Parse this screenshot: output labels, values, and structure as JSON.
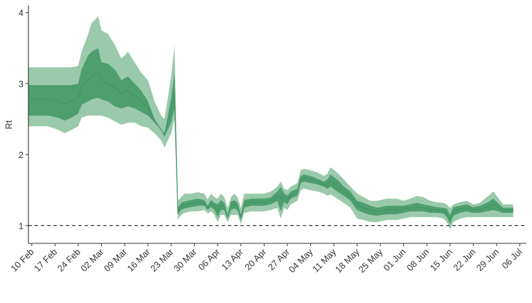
{
  "chart_data": {
    "type": "area",
    "title": "",
    "xlabel": "",
    "ylabel": "Rt",
    "ylim": [
      0.75,
      4.1
    ],
    "yticks": [
      1,
      2,
      3,
      4
    ],
    "xlim": [
      "2020-02-09",
      "2020-07-08"
    ],
    "xticks": [
      "2020-02-10",
      "2020-02-17",
      "2020-02-24",
      "2020-03-02",
      "2020-03-09",
      "2020-03-16",
      "2020-03-23",
      "2020-03-30",
      "2020-04-06",
      "2020-04-13",
      "2020-04-20",
      "2020-04-27",
      "2020-05-04",
      "2020-05-11",
      "2020-05-18",
      "2020-05-25",
      "2020-06-01",
      "2020-06-08",
      "2020-06-15",
      "2020-06-22",
      "2020-06-29",
      "2020-07-06"
    ],
    "xtick_labels": [
      "10 Feb",
      "17 Feb",
      "24 Feb",
      "02 Mar",
      "09 Mar",
      "16 Mar",
      "23 Mar",
      "30 Mar",
      "06 Apr",
      "13 Apr",
      "20 Apr",
      "27 Apr",
      "04 May",
      "11 May",
      "18 May",
      "25 May",
      "01 Jun",
      "08 Jun",
      "15 Jun",
      "22 Jun",
      "29 Jun",
      "06 Jul"
    ],
    "reference_line": {
      "y": 1,
      "style": "dashed"
    },
    "grid": false,
    "legend": "none",
    "colors": {
      "outer_band": "#9ac9ab",
      "inner_band": "#4f9e6e",
      "median_line": "#3f9662",
      "reference": "#333333"
    },
    "series": [
      {
        "x": [
          "2020-02-09",
          "2020-02-12",
          "2020-02-15",
          "2020-02-18",
          "2020-02-20",
          "2020-02-22",
          "2020-02-24",
          "2020-02-25",
          "2020-02-27",
          "2020-02-28",
          "2020-03-01",
          "2020-03-02",
          "2020-03-04",
          "2020-03-06",
          "2020-03-08",
          "2020-03-10",
          "2020-03-12",
          "2020-03-14",
          "2020-03-16",
          "2020-03-18",
          "2020-03-20",
          "2020-03-21",
          "2020-03-23",
          "2020-03-24",
          "2020-03-25",
          "2020-03-26",
          "2020-03-27",
          "2020-03-29",
          "2020-03-31",
          "2020-04-02",
          "2020-04-03",
          "2020-04-04",
          "2020-04-05",
          "2020-04-06",
          "2020-04-07",
          "2020-04-08",
          "2020-04-09",
          "2020-04-10",
          "2020-04-11",
          "2020-04-12",
          "2020-04-13",
          "2020-04-14",
          "2020-04-16",
          "2020-04-18",
          "2020-04-20",
          "2020-04-22",
          "2020-04-24",
          "2020-04-25",
          "2020-04-26",
          "2020-04-27",
          "2020-04-28",
          "2020-04-30",
          "2020-05-01",
          "2020-05-02",
          "2020-05-04",
          "2020-05-06",
          "2020-05-08",
          "2020-05-09",
          "2020-05-10",
          "2020-05-12",
          "2020-05-14",
          "2020-05-16",
          "2020-05-18",
          "2020-05-20",
          "2020-05-22",
          "2020-05-24",
          "2020-05-27",
          "2020-05-30",
          "2020-06-01",
          "2020-06-03",
          "2020-06-05",
          "2020-06-07",
          "2020-06-09",
          "2020-06-11",
          "2020-06-13",
          "2020-06-14",
          "2020-06-15",
          "2020-06-16",
          "2020-06-18",
          "2020-06-20",
          "2020-06-22",
          "2020-06-24",
          "2020-06-26",
          "2020-06-28",
          "2020-07-01",
          "2020-07-04"
        ],
        "outer_upper": [
          3.23,
          3.23,
          3.23,
          3.23,
          3.23,
          3.23,
          3.25,
          3.45,
          3.7,
          3.85,
          3.95,
          3.75,
          3.7,
          3.55,
          3.35,
          3.45,
          3.3,
          3.15,
          3.05,
          2.75,
          2.55,
          2.5,
          3.1,
          3.55,
          1.35,
          1.4,
          1.45,
          1.45,
          1.47,
          1.45,
          1.37,
          1.45,
          1.4,
          1.38,
          1.45,
          1.4,
          1.25,
          1.4,
          1.45,
          1.4,
          1.25,
          1.45,
          1.45,
          1.45,
          1.45,
          1.48,
          1.55,
          1.62,
          1.52,
          1.5,
          1.55,
          1.6,
          1.78,
          1.8,
          1.78,
          1.75,
          1.7,
          1.73,
          1.82,
          1.75,
          1.65,
          1.55,
          1.45,
          1.4,
          1.35,
          1.35,
          1.38,
          1.38,
          1.35,
          1.38,
          1.42,
          1.4,
          1.35,
          1.33,
          1.32,
          1.3,
          1.25,
          1.3,
          1.33,
          1.35,
          1.3,
          1.32,
          1.4,
          1.48,
          1.3,
          1.3
        ],
        "outer_lower": [
          2.4,
          2.4,
          2.4,
          2.35,
          2.3,
          2.35,
          2.4,
          2.52,
          2.55,
          2.55,
          2.55,
          2.55,
          2.52,
          2.47,
          2.42,
          2.45,
          2.45,
          2.4,
          2.38,
          2.3,
          2.2,
          2.1,
          2.3,
          2.5,
          1.08,
          1.15,
          1.18,
          1.2,
          1.2,
          1.22,
          1.17,
          1.2,
          1.15,
          1.05,
          1.15,
          1.15,
          1.05,
          1.15,
          1.15,
          1.15,
          1.02,
          1.18,
          1.2,
          1.2,
          1.2,
          1.22,
          1.25,
          1.1,
          1.25,
          1.22,
          1.3,
          1.35,
          1.5,
          1.52,
          1.5,
          1.48,
          1.45,
          1.42,
          1.44,
          1.38,
          1.32,
          1.25,
          1.1,
          1.08,
          1.05,
          1.05,
          1.08,
          1.08,
          1.1,
          1.12,
          1.12,
          1.12,
          1.12,
          1.12,
          1.1,
          1.05,
          0.95,
          1.05,
          1.1,
          1.12,
          1.12,
          1.12,
          1.12,
          1.12,
          1.12,
          1.12
        ],
        "inner_upper": [
          2.98,
          2.98,
          2.98,
          2.98,
          2.98,
          2.98,
          3.0,
          3.2,
          3.4,
          3.45,
          3.5,
          3.3,
          3.28,
          3.2,
          3.05,
          3.1,
          3.0,
          2.9,
          2.75,
          2.5,
          2.35,
          2.3,
          2.8,
          3.15,
          1.25,
          1.32,
          1.34,
          1.36,
          1.38,
          1.36,
          1.28,
          1.36,
          1.32,
          1.3,
          1.36,
          1.32,
          1.15,
          1.34,
          1.36,
          1.32,
          1.15,
          1.36,
          1.38,
          1.38,
          1.38,
          1.4,
          1.48,
          1.55,
          1.45,
          1.42,
          1.48,
          1.52,
          1.7,
          1.72,
          1.7,
          1.66,
          1.62,
          1.65,
          1.72,
          1.65,
          1.55,
          1.48,
          1.35,
          1.32,
          1.28,
          1.25,
          1.28,
          1.28,
          1.28,
          1.3,
          1.32,
          1.3,
          1.28,
          1.26,
          1.25,
          1.24,
          1.15,
          1.26,
          1.28,
          1.3,
          1.26,
          1.28,
          1.32,
          1.38,
          1.25,
          1.25
        ],
        "inner_lower": [
          2.55,
          2.55,
          2.55,
          2.52,
          2.48,
          2.52,
          2.58,
          2.7,
          2.75,
          2.78,
          2.8,
          2.78,
          2.75,
          2.68,
          2.65,
          2.68,
          2.65,
          2.6,
          2.55,
          2.45,
          2.35,
          2.25,
          2.45,
          2.65,
          1.15,
          1.22,
          1.24,
          1.26,
          1.28,
          1.28,
          1.22,
          1.26,
          1.22,
          1.12,
          1.22,
          1.22,
          1.1,
          1.22,
          1.24,
          1.22,
          1.08,
          1.25,
          1.28,
          1.28,
          1.28,
          1.3,
          1.35,
          1.2,
          1.33,
          1.3,
          1.38,
          1.42,
          1.6,
          1.62,
          1.6,
          1.58,
          1.55,
          1.52,
          1.55,
          1.48,
          1.42,
          1.35,
          1.22,
          1.18,
          1.15,
          1.14,
          1.16,
          1.16,
          1.18,
          1.2,
          1.2,
          1.2,
          1.18,
          1.18,
          1.17,
          1.12,
          1.02,
          1.14,
          1.18,
          1.2,
          1.18,
          1.18,
          1.2,
          1.22,
          1.18,
          1.18
        ],
        "median": [
          2.78,
          2.78,
          2.78,
          2.75,
          2.72,
          2.75,
          2.8,
          2.95,
          3.05,
          3.1,
          3.15,
          3.05,
          3.0,
          2.95,
          2.85,
          2.9,
          2.82,
          2.75,
          2.65,
          2.48,
          2.35,
          2.28,
          2.62,
          2.9,
          1.2,
          1.27,
          1.29,
          1.31,
          1.33,
          1.32,
          1.25,
          1.31,
          1.27,
          1.2,
          1.29,
          1.27,
          1.12,
          1.28,
          1.3,
          1.27,
          1.11,
          1.3,
          1.33,
          1.33,
          1.33,
          1.35,
          1.42,
          1.38,
          1.39,
          1.36,
          1.43,
          1.47,
          1.65,
          1.67,
          1.65,
          1.62,
          1.58,
          1.58,
          1.63,
          1.56,
          1.48,
          1.42,
          1.28,
          1.25,
          1.22,
          1.2,
          1.22,
          1.22,
          1.23,
          1.25,
          1.26,
          1.25,
          1.23,
          1.22,
          1.21,
          1.18,
          1.08,
          1.2,
          1.23,
          1.25,
          1.22,
          1.23,
          1.26,
          1.3,
          1.22,
          1.22
        ]
      }
    ]
  }
}
